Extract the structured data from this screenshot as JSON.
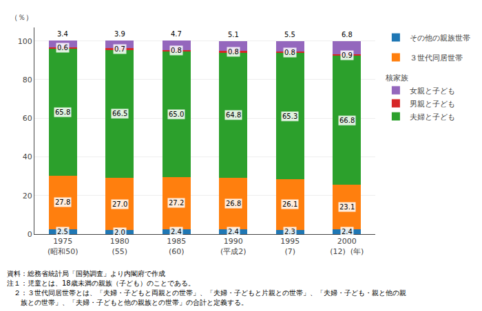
{
  "chart_data": {
    "type": "bar",
    "stacked": true,
    "data_labels": true,
    "grid": true,
    "ylabel": "（％）",
    "ylim": [
      0,
      107
    ],
    "yticks": [
      0,
      20,
      40,
      60,
      80,
      100
    ],
    "categories": [
      "1975\n(昭和50)",
      "1980\n(55)",
      "1985\n(60)",
      "1990\n(平成2)",
      "1995\n(7)",
      "2000\n(12)  (年)"
    ],
    "series": [
      {
        "name": "その他の親族世帯",
        "values": [
          2.5,
          2.0,
          2.4,
          2.4,
          2.3,
          2.4
        ],
        "value_labels": [
          "2.5",
          "2.0",
          "2.4",
          "2.4",
          "2.3",
          "2.4"
        ]
      },
      {
        "name": "３世代同居世帯",
        "values": [
          27.8,
          27.0,
          27.2,
          26.8,
          26.1,
          23.1
        ],
        "value_labels": [
          "27.8",
          "27.0",
          "27.2",
          "26.8",
          "26.1",
          "23.1"
        ]
      },
      {
        "name": "夫婦と子ども",
        "values": [
          65.8,
          66.5,
          65.0,
          64.8,
          65.3,
          66.8
        ],
        "value_labels": [
          "65.8",
          "66.5",
          "65.0",
          "64.8",
          "65.3",
          "66.8"
        ]
      },
      {
        "name": "男親と子ども",
        "values": [
          0.6,
          0.7,
          0.8,
          0.8,
          0.8,
          0.9
        ]
      },
      {
        "name": "女親と子ども",
        "values": [
          3.4,
          3.9,
          4.7,
          5.1,
          5.5,
          6.8
        ]
      }
    ],
    "annotations": [
      {
        "text": "核家族",
        "series": [
          "女親と子ども",
          "男親と子ども",
          "夫婦と子ども"
        ]
      }
    ],
    "footnotes": [
      "資料：総務省統計局「国勢調査」より内閣府で作成",
      "注１：児童とは、18歳未満の親族（子ども）のことである。",
      "　２：３世代同居世帯とは、「夫婦・子どもと両親との世帯」、「夫婦・子どもと片親との世帯」、「夫婦・子ども・親と他の親",
      "　　族との世帯」、「夫婦・子どもと他の親族との世帯」の合計と定義する。"
    ]
  }
}
